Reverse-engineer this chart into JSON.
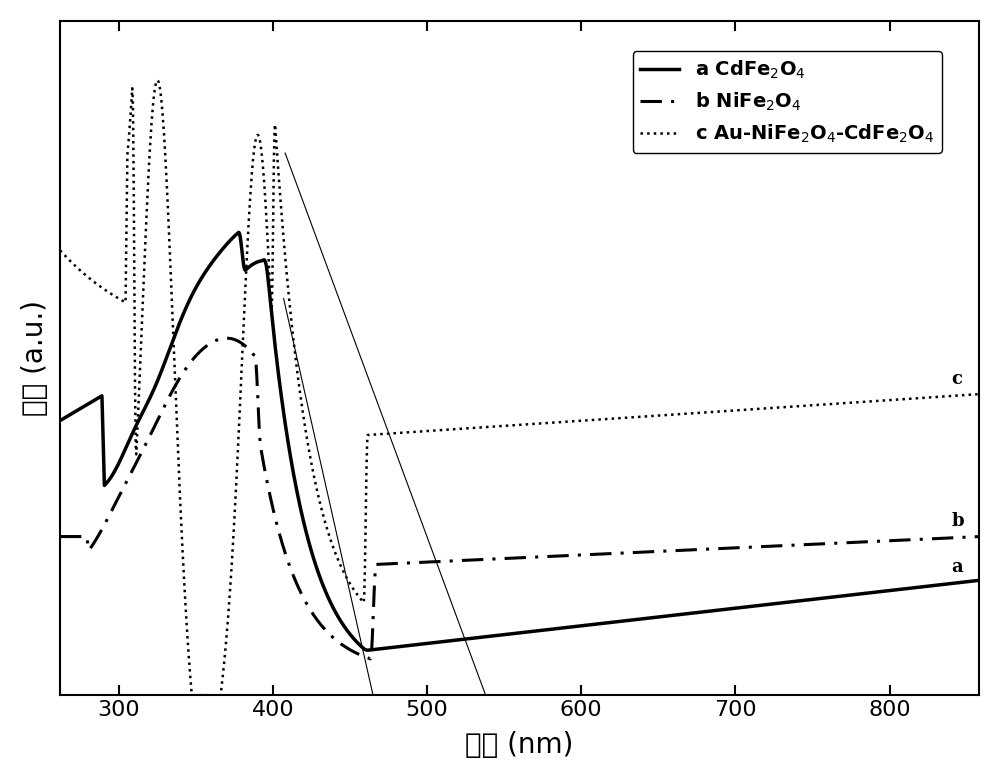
{
  "xlabel": "波长 (nm)",
  "ylabel": "强度 (a.u.)",
  "xlim": [
    262,
    858
  ],
  "xticks": [
    300,
    400,
    500,
    600,
    700,
    800
  ],
  "label_a": "a",
  "label_b": "b",
  "label_c": "c",
  "line_color": "#000000",
  "bg_color": "#ffffff",
  "xlabel_fontsize": 20,
  "ylabel_fontsize": 20,
  "tick_fontsize": 16,
  "legend_fontsize": 14,
  "lw_a": 2.5,
  "lw_b": 2.2,
  "lw_c": 1.8,
  "tangent_lw": 0.8,
  "figsize": [
    10.0,
    7.8
  ],
  "dpi": 100
}
